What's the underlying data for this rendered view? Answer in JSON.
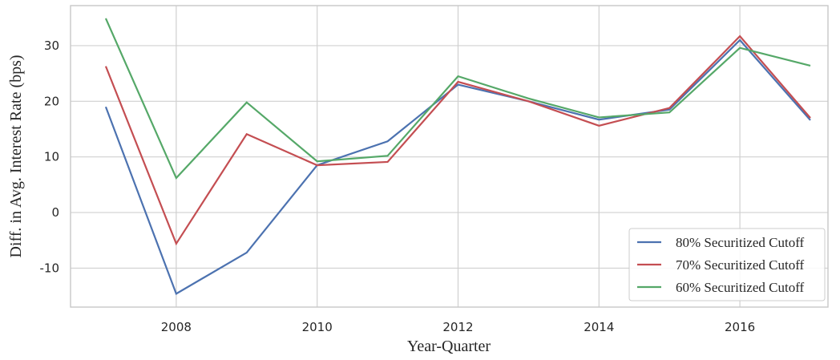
{
  "chart_data": {
    "type": "line",
    "x_label": "Year-Quarter",
    "y_label": "Diff. in Avg. Interest Rate (bps)",
    "x": [
      2007,
      2008,
      2009,
      2010,
      2011,
      2012,
      2013,
      2014,
      2015,
      2016,
      2017
    ],
    "series": [
      {
        "name": "80% Securitized Cutoff",
        "color": "#4c72b0",
        "values": [
          19,
          -14.6,
          -7.2,
          8.5,
          12.8,
          23,
          20,
          16.7,
          18.5,
          31,
          16.6
        ]
      },
      {
        "name": "70% Securitized Cutoff",
        "color": "#c44e52",
        "values": [
          26.3,
          -5.6,
          14.1,
          8.5,
          9.1,
          23.5,
          20,
          15.6,
          18.8,
          31.7,
          17
        ]
      },
      {
        "name": "60% Securitized Cutoff",
        "color": "#55a868",
        "values": [
          34.9,
          6.2,
          19.8,
          9.2,
          10.2,
          24.5,
          20.5,
          17.1,
          18,
          29.6,
          26.4
        ]
      }
    ],
    "xlim": [
      2006.5,
      2017.25
    ],
    "xticks": [
      2008,
      2010,
      2012,
      2014,
      2016
    ],
    "ylim": [
      -17,
      37.2
    ],
    "yticks": [
      -10,
      0,
      10,
      20,
      30
    ],
    "grid": true,
    "legend": "lower right"
  }
}
